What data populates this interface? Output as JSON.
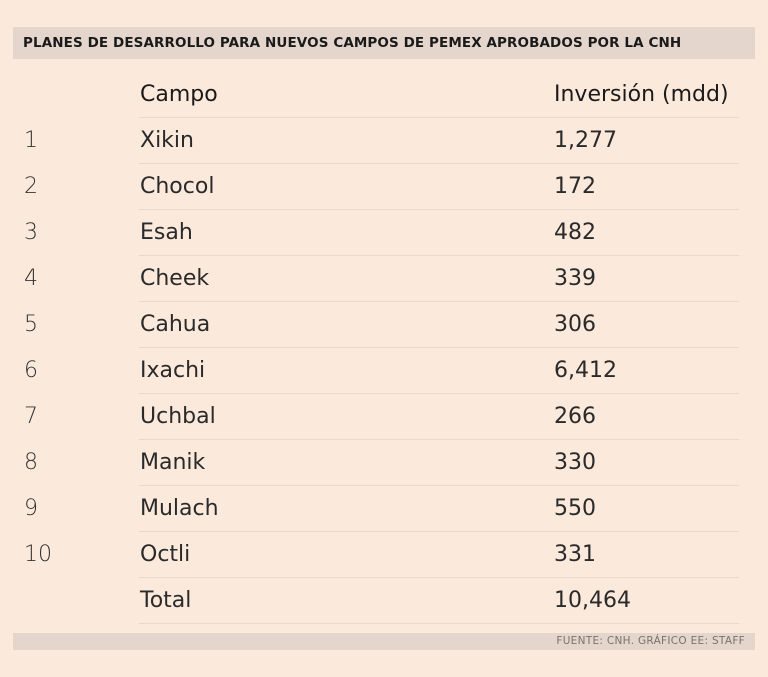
{
  "title": "PLANES DE DESARROLLO PARA NUEVOS CAMPOS DE PEMEX APROBADOS POR LA CNH",
  "source": "FUENTE: CNH. GRÁFICO EE: STAFF",
  "chart_data": {
    "type": "table",
    "title": "PLANES DE DESARROLLO PARA NUEVOS CAMPOS DE PEMEX APROBADOS POR LA CNH",
    "columns": [
      "",
      "Campo",
      "Inversión (mdd)"
    ],
    "rows": [
      {
        "num": "1",
        "campo": "Xikin",
        "inversion": "1,277"
      },
      {
        "num": "2",
        "campo": "Chocol",
        "inversion": "172"
      },
      {
        "num": "3",
        "campo": "Esah",
        "inversion": "482"
      },
      {
        "num": "4",
        "campo": "Cheek",
        "inversion": "339"
      },
      {
        "num": "5",
        "campo": "Cahua",
        "inversion": "306"
      },
      {
        "num": "6",
        "campo": "Ixachi",
        "inversion": "6,412"
      },
      {
        "num": "7",
        "campo": "Uchbal",
        "inversion": "266"
      },
      {
        "num": "8",
        "campo": "Manik",
        "inversion": "330"
      },
      {
        "num": "9",
        "campo": "Mulach",
        "inversion": "550"
      },
      {
        "num": "10",
        "campo": "Octli",
        "inversion": "331"
      }
    ],
    "total": {
      "label": "Total",
      "inversion": "10,464"
    }
  },
  "colors": {
    "background": "#fbe9dc",
    "bar": "#e4d6cc",
    "separator": "#ead8cb"
  }
}
